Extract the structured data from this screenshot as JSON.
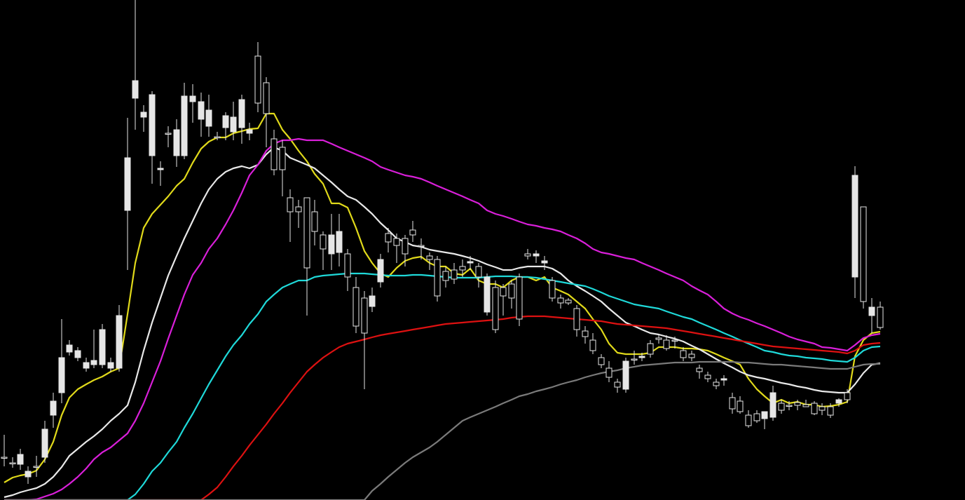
{
  "chart_data": {
    "type": "candlestick",
    "title": "",
    "xlabel": "",
    "ylabel": "",
    "grid": false,
    "legend": "none",
    "background": "#000000",
    "candle_color": "#e6e6e6",
    "ylim": [
      0,
      713
    ],
    "x": [
      6,
      18,
      29,
      40,
      52,
      64,
      76,
      88,
      99,
      111,
      123,
      134,
      146,
      158,
      170,
      182,
      193,
      205,
      217,
      229,
      240,
      252,
      263,
      275,
      287,
      298,
      310,
      322,
      333,
      345,
      356,
      368,
      380,
      391,
      403,
      414,
      426,
      438,
      449,
      461,
      473,
      484,
      496,
      508,
      520,
      531,
      543,
      554,
      566,
      578,
      589,
      601,
      613,
      624,
      636,
      648,
      660,
      671,
      683,
      695,
      707,
      718,
      730,
      741,
      753,
      765,
      777,
      788,
      800,
      811,
      823,
      835,
      846,
      858,
      869,
      881,
      893,
      905,
      916,
      928,
      940,
      951,
      963,
      975,
      987,
      998,
      1010,
      1022,
      1033,
      1045,
      1056,
      1068,
      1080,
      1091,
      1103,
      1115,
      1126,
      1138,
      1150,
      1162,
      1173,
      1185,
      1197,
      1209,
      1220,
      1232,
      1244,
      1256
    ],
    "candles": [
      [
        652,
        652,
        620,
        665
      ],
      [
        660,
        660,
        652,
        667
      ],
      [
        662,
        648,
        640,
        670
      ],
      [
        680,
        672,
        665,
        690
      ],
      [
        665,
        665,
        650,
        680
      ],
      [
        652,
        612,
        600,
        660
      ],
      [
        592,
        572,
        560,
        610
      ],
      [
        560,
        510,
        455,
        575
      ],
      [
        502,
        492,
        485,
        507
      ],
      [
        510,
        500,
        495,
        515
      ],
      [
        525,
        517,
        510,
        530
      ],
      [
        520,
        514,
        470,
        525
      ],
      [
        520,
        470,
        462,
        525
      ],
      [
        525,
        517,
        510,
        530
      ],
      [
        525,
        450,
        435,
        530
      ],
      [
        300,
        225,
        168,
        385
      ],
      [
        140,
        115,
        0,
        185
      ],
      [
        167,
        160,
        150,
        188
      ],
      [
        222,
        135,
        130,
        262
      ],
      [
        242,
        240,
        230,
        265
      ],
      [
        190,
        190,
        180,
        210
      ],
      [
        222,
        185,
        170,
        238
      ],
      [
        222,
        137,
        118,
        227
      ],
      [
        145,
        137,
        120,
        175
      ],
      [
        170,
        145,
        132,
        195
      ],
      [
        180,
        157,
        135,
        195
      ],
      [
        195,
        195,
        188,
        200
      ],
      [
        182,
        165,
        160,
        200
      ],
      [
        188,
        167,
        145,
        200
      ],
      [
        182,
        142,
        135,
        205
      ],
      [
        190,
        185,
        175,
        200
      ],
      [
        80,
        147,
        60,
        160
      ],
      [
        118,
        162,
        110,
        210
      ],
      [
        198,
        242,
        185,
        250
      ],
      [
        210,
        242,
        200,
        280
      ],
      [
        282,
        302,
        270,
        345
      ],
      [
        295,
        302,
        285,
        325
      ],
      [
        282,
        382,
        282,
        450
      ],
      [
        302,
        330,
        285,
        350
      ],
      [
        335,
        355,
        330,
        385
      ],
      [
        362,
        335,
        305,
        385
      ],
      [
        360,
        330,
        305,
        380
      ],
      [
        362,
        395,
        355,
        415
      ],
      [
        410,
        465,
        395,
        475
      ],
      [
        425,
        475,
        415,
        555
      ],
      [
        437,
        422,
        410,
        445
      ],
      [
        402,
        370,
        362,
        410
      ],
      [
        333,
        345,
        325,
        360
      ],
      [
        340,
        350,
        333,
        375
      ],
      [
        340,
        362,
        335,
        380
      ],
      [
        328,
        335,
        315,
        345
      ],
      [
        350,
        350,
        340,
        370
      ],
      [
        365,
        370,
        360,
        385
      ],
      [
        370,
        422,
        365,
        430
      ],
      [
        387,
        400,
        380,
        410
      ],
      [
        385,
        398,
        375,
        405
      ],
      [
        380,
        385,
        370,
        395
      ],
      [
        375,
        373,
        365,
        385
      ],
      [
        380,
        395,
        375,
        410
      ],
      [
        445,
        395,
        390,
        450
      ],
      [
        410,
        470,
        400,
        475
      ],
      [
        410,
        422,
        405,
        450
      ],
      [
        405,
        425,
        400,
        440
      ],
      [
        395,
        455,
        390,
        465
      ],
      [
        362,
        365,
        355,
        370
      ],
      [
        365,
        362,
        357,
        375
      ],
      [
        375,
        372,
        365,
        385
      ],
      [
        400,
        425,
        395,
        430
      ],
      [
        425,
        432,
        420,
        440
      ],
      [
        428,
        432,
        425,
        435
      ],
      [
        440,
        470,
        435,
        480
      ],
      [
        472,
        480,
        465,
        490
      ],
      [
        485,
        500,
        475,
        505
      ],
      [
        510,
        520,
        505,
        525
      ],
      [
        525,
        538,
        515,
        545
      ],
      [
        545,
        552,
        540,
        560
      ],
      [
        555,
        515,
        510,
        560
      ],
      [
        512,
        512,
        500,
        520
      ],
      [
        510,
        508,
        503,
        515
      ],
      [
        490,
        505,
        485,
        510
      ],
      [
        482,
        484,
        477,
        490
      ],
      [
        485,
        497,
        478,
        500
      ],
      [
        485,
        485,
        480,
        497
      ],
      [
        500,
        510,
        495,
        515
      ],
      [
        505,
        510,
        500,
        515
      ],
      [
        525,
        530,
        520,
        540
      ],
      [
        535,
        540,
        530,
        545
      ],
      [
        545,
        550,
        540,
        555
      ],
      [
        542,
        540,
        535,
        550
      ],
      [
        567,
        583,
        560,
        590
      ],
      [
        572,
        587,
        565,
        590
      ],
      [
        592,
        607,
        585,
        610
      ],
      [
        590,
        600,
        585,
        603
      ],
      [
        597,
        587,
        590,
        612
      ],
      [
        595,
        560,
        550,
        600
      ],
      [
        575,
        585,
        570,
        590
      ],
      [
        578,
        578,
        572,
        585
      ],
      [
        574,
        578,
        570,
        585
      ],
      [
        577,
        580,
        570,
        580
      ],
      [
        575,
        590,
        572,
        592
      ],
      [
        580,
        585,
        575,
        592
      ],
      [
        580,
        592,
        575,
        596
      ],
      [
        575,
        570,
        568,
        580
      ],
      [
        560,
        570,
        555,
        575
      ],
      [
        395,
        250,
        237,
        425
      ],
      [
        295,
        430,
        295,
        440
      ],
      [
        450,
        438,
        425,
        475
      ],
      [
        438,
        467,
        430,
        470
      ]
    ],
    "series": [
      {
        "color": "#e0d91a",
        "values": [
          688,
          681,
          678,
          676,
          671,
          655,
          630,
          592,
          567,
          555,
          548,
          542,
          537,
          530,
          525,
          448,
          375,
          325,
          305,
          292,
          280,
          265,
          255,
          232,
          212,
          202,
          196,
          196,
          190,
          187,
          184,
          183,
          162,
          162,
          185,
          198,
          215,
          230,
          248,
          262,
          290,
          290,
          296,
          325,
          358,
          375,
          390,
          395,
          382,
          372,
          368,
          366,
          375,
          380,
          380,
          390,
          392,
          383,
          400,
          405,
          405,
          410,
          400,
          395,
          395,
          400,
          395,
          410,
          415,
          420,
          430,
          440,
          455,
          470,
          490,
          503,
          505,
          505,
          505,
          503,
          495,
          495,
          495,
          497,
          497,
          498,
          500,
          505,
          510,
          515,
          520,
          540,
          555,
          565,
          575,
          570,
          575,
          573,
          577,
          577,
          580,
          579,
          577,
          573,
          508,
          485,
          475,
          473
        ]
      },
      {
        "color": "#e8e8e8",
        "values": [
          709,
          706,
          702,
          699,
          696,
          690,
          680,
          666,
          650,
          640,
          630,
          622,
          612,
          600,
          590,
          578,
          545,
          500,
          460,
          425,
          393,
          365,
          340,
          315,
          290,
          270,
          255,
          245,
          240,
          237,
          240,
          235,
          220,
          210,
          215,
          225,
          230,
          235,
          240,
          250,
          260,
          270,
          280,
          285,
          295,
          305,
          318,
          328,
          340,
          345,
          350,
          352,
          356,
          358,
          360,
          362,
          365,
          368,
          372,
          377,
          381,
          385,
          385,
          382,
          380,
          380,
          380,
          383,
          390,
          400,
          408,
          415,
          422,
          430,
          440,
          450,
          460,
          465,
          470,
          475,
          477,
          480,
          483,
          487,
          493,
          498,
          505,
          512,
          518,
          524,
          530,
          535,
          538,
          540,
          543,
          546,
          548,
          551,
          553,
          556,
          558,
          559,
          560,
          560,
          548,
          532,
          520,
          518
        ]
      },
      {
        "color": "#d91fd9",
        "values": [
          713,
          713,
          713,
          713,
          712,
          708,
          704,
          698,
          690,
          680,
          668,
          655,
          645,
          638,
          628,
          618,
          600,
          575,
          545,
          515,
          483,
          450,
          420,
          392,
          375,
          355,
          340,
          320,
          300,
          275,
          250,
          235,
          215,
          205,
          200,
          200,
          198,
          200,
          200,
          200,
          205,
          210,
          215,
          220,
          225,
          230,
          238,
          242,
          246,
          250,
          252,
          255,
          260,
          265,
          270,
          275,
          280,
          285,
          290,
          300,
          305,
          308,
          312,
          316,
          320,
          322,
          325,
          327,
          330,
          335,
          340,
          347,
          355,
          360,
          362,
          365,
          368,
          370,
          375,
          380,
          385,
          390,
          395,
          400,
          408,
          414,
          420,
          430,
          440,
          447,
          452,
          456,
          461,
          465,
          470,
          475,
          480,
          484,
          487,
          490,
          495,
          496,
          498,
          500,
          492,
          482,
          478,
          476
        ]
      },
      {
        "color": "#1fd9d9",
        "values": [
          713,
          713,
          713,
          713,
          713,
          713,
          713,
          713,
          713,
          713,
          713,
          713,
          713,
          713,
          713,
          713,
          705,
          690,
          672,
          660,
          645,
          630,
          610,
          590,
          568,
          548,
          528,
          508,
          492,
          478,
          462,
          448,
          430,
          420,
          410,
          405,
          400,
          400,
          395,
          393,
          392,
          391,
          390,
          390,
          390,
          391,
          392,
          393,
          393,
          393,
          392,
          392,
          393,
          394,
          395,
          396,
          396,
          396,
          396,
          395,
          394,
          394,
          394,
          395,
          395,
          396,
          398,
          400,
          402,
          404,
          406,
          408,
          412,
          417,
          422,
          426,
          430,
          434,
          436,
          438,
          440,
          444,
          448,
          452,
          455,
          460,
          465,
          470,
          475,
          480,
          485,
          490,
          495,
          500,
          502,
          505,
          507,
          508,
          510,
          511,
          512,
          514,
          515,
          516,
          510,
          500,
          495,
          494
        ]
      },
      {
        "color": "#dd1111",
        "values": [
          713,
          713,
          713,
          713,
          713,
          713,
          713,
          713,
          713,
          713,
          713,
          713,
          713,
          713,
          713,
          713,
          713,
          713,
          713,
          713,
          713,
          713,
          713,
          713,
          713,
          705,
          695,
          680,
          665,
          650,
          635,
          620,
          605,
          590,
          575,
          560,
          545,
          530,
          520,
          510,
          502,
          495,
          490,
          487,
          484,
          481,
          478,
          476,
          474,
          472,
          470,
          468,
          466,
          464,
          462,
          461,
          460,
          459,
          458,
          457,
          456,
          455,
          453,
          452,
          451,
          451,
          451,
          452,
          453,
          454,
          455,
          456,
          457,
          458,
          460,
          462,
          463,
          464,
          465,
          466,
          467,
          468,
          470,
          472,
          474,
          476,
          478,
          480,
          482,
          484,
          486,
          488,
          490,
          492,
          494,
          495,
          496,
          497,
          498,
          499,
          500,
          501,
          502,
          504,
          500,
          492,
          490,
          489
        ]
      },
      {
        "color": "#7a7a7a",
        "values": [
          713,
          713,
          713,
          713,
          713,
          713,
          713,
          713,
          713,
          713,
          713,
          713,
          713,
          713,
          713,
          713,
          713,
          713,
          713,
          713,
          713,
          713,
          713,
          713,
          713,
          713,
          713,
          713,
          713,
          713,
          713,
          713,
          713,
          713,
          713,
          713,
          713,
          713,
          713,
          713,
          713,
          713,
          713,
          713,
          713,
          700,
          690,
          680,
          670,
          660,
          652,
          645,
          638,
          630,
          620,
          610,
          600,
          595,
          590,
          585,
          580,
          575,
          570,
          565,
          562,
          558,
          555,
          552,
          548,
          545,
          542,
          538,
          535,
          532,
          530,
          528,
          525,
          523,
          521,
          520,
          519,
          518,
          517,
          517,
          517,
          516,
          516,
          516,
          516,
          516,
          517,
          517,
          518,
          519,
          520,
          520,
          521,
          522,
          523,
          524,
          525,
          526,
          526,
          526,
          523,
          520,
          519,
          519
        ]
      }
    ]
  }
}
